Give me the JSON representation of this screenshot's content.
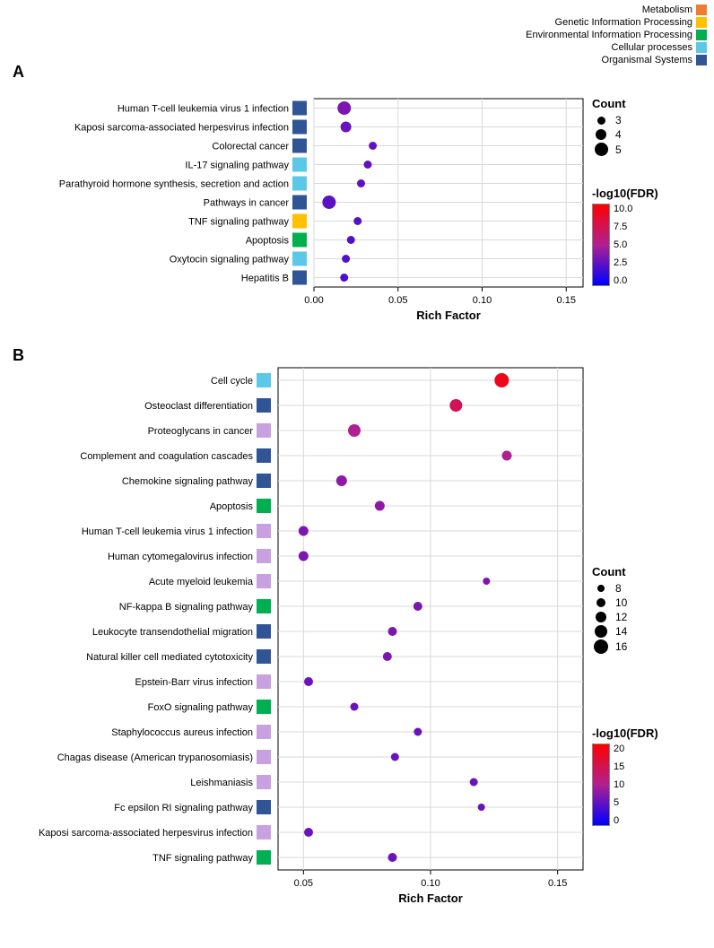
{
  "top_legend": {
    "items": [
      {
        "label": "Metabolism",
        "color": "#ed7d31"
      },
      {
        "label": "Genetic Information Processing",
        "color": "#ffc000"
      },
      {
        "label": "Environmental Information Processing",
        "color": "#00b050"
      },
      {
        "label": "Cellular processes",
        "color": "#5bc8e8"
      },
      {
        "label": "Organismal Systems",
        "color": "#2f5597"
      }
    ]
  },
  "panelA": {
    "label": "A",
    "x_label": "Rich Factor",
    "xlim": [
      0.0,
      0.16
    ],
    "xticks": [
      "0.00",
      "0.05",
      "0.10",
      "0.15"
    ],
    "count_legend": {
      "title": "Count",
      "values": [
        3.0,
        4.0,
        5.0
      ],
      "sizes": [
        9,
        12,
        15
      ]
    },
    "fdr_legend": {
      "title": "-log10(FDR)",
      "ticks": [
        "10.0",
        "7.5",
        "5.0",
        "2.5",
        "0.0"
      ],
      "gradient_top": "#ff0000",
      "gradient_mid": "#b02090",
      "gradient_bot": "#0000ff"
    },
    "points": [
      {
        "label": "Human T-cell leukemia virus 1 infection",
        "cat": "#2f5597",
        "x": 0.018,
        "count": 5.0,
        "fdr": 3.5
      },
      {
        "label": "Kaposi sarcoma-associated herpesvirus infection",
        "cat": "#2f5597",
        "x": 0.019,
        "count": 4.0,
        "fdr": 3.0
      },
      {
        "label": "Colorectal cancer",
        "cat": "#2f5597",
        "x": 0.035,
        "count": 3.0,
        "fdr": 2.8
      },
      {
        "label": "IL-17 signaling pathway",
        "cat": "#5bc8e8",
        "x": 0.032,
        "count": 3.0,
        "fdr": 2.8
      },
      {
        "label": "Parathyroid hormone synthesis, secretion and action",
        "cat": "#5bc8e8",
        "x": 0.028,
        "count": 3.0,
        "fdr": 2.6
      },
      {
        "label": "Pathways in cancer",
        "cat": "#2f5597",
        "x": 0.009,
        "count": 5.0,
        "fdr": 2.6
      },
      {
        "label": "TNF signaling pathway",
        "cat": "#ffc000",
        "x": 0.026,
        "count": 3.0,
        "fdr": 2.5
      },
      {
        "label": "Apoptosis",
        "cat": "#00b050",
        "x": 0.022,
        "count": 3.0,
        "fdr": 2.4
      },
      {
        "label": "Oxytocin signaling pathway",
        "cat": "#5bc8e8",
        "x": 0.019,
        "count": 3.0,
        "fdr": 2.3
      },
      {
        "label": "Hepatitis B",
        "cat": "#2f5597",
        "x": 0.018,
        "count": 3.0,
        "fdr": 2.2
      }
    ]
  },
  "panelB": {
    "label": "B",
    "x_label": "Rich Factor",
    "xlim": [
      0.04,
      0.16
    ],
    "xticks": [
      "0.05",
      "0.10",
      "0.15"
    ],
    "count_legend": {
      "title": "Count",
      "values": [
        8,
        10,
        12,
        14,
        16
      ],
      "sizes": [
        8,
        10,
        12,
        14,
        16
      ]
    },
    "fdr_legend": {
      "title": "-log10(FDR)",
      "ticks": [
        "20",
        "15",
        "10",
        "5",
        "0"
      ],
      "gradient_top": "#ff0000",
      "gradient_mid": "#b02090",
      "gradient_bot": "#0000ff"
    },
    "points": [
      {
        "label": "Cell cycle",
        "cat": "#5bc8e8",
        "x": 0.128,
        "count": 16,
        "fdr": 18
      },
      {
        "label": "Osteoclast differentiation",
        "cat": "#2f5597",
        "x": 0.11,
        "count": 14,
        "fdr": 14
      },
      {
        "label": "Proteoglycans in cancer",
        "cat": "#c8a2e0",
        "x": 0.07,
        "count": 14,
        "fdr": 10
      },
      {
        "label": "Complement and coagulation cascades",
        "cat": "#2f5597",
        "x": 0.13,
        "count": 11,
        "fdr": 10
      },
      {
        "label": "Chemokine signaling pathway",
        "cat": "#2f5597",
        "x": 0.065,
        "count": 12,
        "fdr": 8
      },
      {
        "label": "Apoptosis",
        "cat": "#00b050",
        "x": 0.08,
        "count": 11,
        "fdr": 8
      },
      {
        "label": "Human T-cell leukemia virus 1 infection",
        "cat": "#c8a2e0",
        "x": 0.05,
        "count": 11,
        "fdr": 7
      },
      {
        "label": "Human cytomegalovirus infection",
        "cat": "#c8a2e0",
        "x": 0.05,
        "count": 11,
        "fdr": 7
      },
      {
        "label": "Acute myeloid leukemia",
        "cat": "#c8a2e0",
        "x": 0.122,
        "count": 8,
        "fdr": 7
      },
      {
        "label": "NF-kappa B signaling pathway",
        "cat": "#00b050",
        "x": 0.095,
        "count": 10,
        "fdr": 7
      },
      {
        "label": "Leukocyte transendothelial migration",
        "cat": "#2f5597",
        "x": 0.085,
        "count": 10,
        "fdr": 7
      },
      {
        "label": "Natural killer cell mediated cytotoxicity",
        "cat": "#2f5597",
        "x": 0.083,
        "count": 10,
        "fdr": 7
      },
      {
        "label": "Epstein-Barr virus infection",
        "cat": "#c8a2e0",
        "x": 0.052,
        "count": 10,
        "fdr": 6
      },
      {
        "label": "FoxO signaling pathway",
        "cat": "#00b050",
        "x": 0.07,
        "count": 9,
        "fdr": 6
      },
      {
        "label": "Staphylococcus aureus infection",
        "cat": "#c8a2e0",
        "x": 0.095,
        "count": 9,
        "fdr": 6
      },
      {
        "label": "Chagas disease (American trypanosomiasis)",
        "cat": "#c8a2e0",
        "x": 0.086,
        "count": 9,
        "fdr": 6
      },
      {
        "label": "Leishmaniasis",
        "cat": "#c8a2e0",
        "x": 0.117,
        "count": 9,
        "fdr": 6
      },
      {
        "label": "Fc epsilon RI signaling pathway",
        "cat": "#2f5597",
        "x": 0.12,
        "count": 8,
        "fdr": 6
      },
      {
        "label": "Kaposi sarcoma-associated herpesvirus infection",
        "cat": "#c8a2e0",
        "x": 0.052,
        "count": 10,
        "fdr": 6
      },
      {
        "label": "TNF signaling pathway",
        "cat": "#00b050",
        "x": 0.085,
        "count": 10,
        "fdr": 6
      }
    ]
  }
}
